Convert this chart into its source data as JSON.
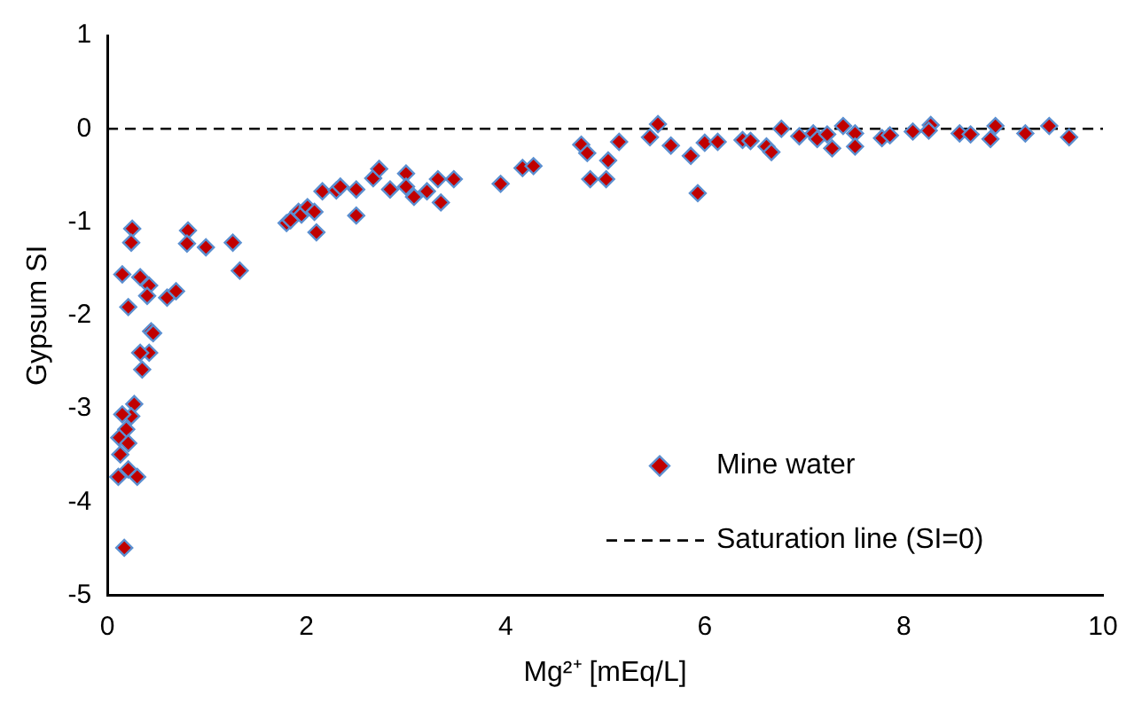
{
  "chart_data": {
    "type": "scatter",
    "xlabel": "Mg²⁺ [mEq/L]",
    "ylabel": "Gypsum SI",
    "xlim": [
      0,
      10
    ],
    "xticks": [
      0,
      2,
      4,
      6,
      8,
      10
    ],
    "ylim": [
      -5,
      1
    ],
    "yticks": [
      -5,
      -4,
      -3,
      -2,
      -1,
      0,
      1
    ],
    "grid": false,
    "legend": "bottom right",
    "marker": "diamond",
    "series": [
      {
        "name": "Mine water",
        "color": "#c00000",
        "x": [
          0.25,
          0.24,
          0.15,
          0.21,
          0.33,
          0.42,
          0.4,
          0.6,
          0.69,
          0.81,
          0.8,
          0.99,
          1.26,
          1.33,
          0.44,
          0.46,
          0.42,
          0.33,
          0.35,
          0.27,
          0.24,
          0.15,
          0.19,
          0.12,
          0.21,
          0.13,
          0.11,
          0.21,
          0.3,
          0.17,
          1.8,
          1.84,
          1.92,
          1.95,
          2.01,
          2.08,
          2.1,
          2.16,
          2.3,
          2.34,
          2.5,
          2.5,
          2.67,
          2.73,
          2.84,
          3.0,
          3.0,
          3.08,
          3.21,
          3.32,
          3.48,
          3.35,
          3.95,
          4.17,
          4.28,
          4.76,
          4.82,
          4.85,
          5.01,
          5.03,
          5.14,
          5.45,
          5.53,
          5.66,
          5.86,
          5.93,
          6.0,
          6.13,
          6.38,
          6.46,
          6.62,
          6.67,
          6.77,
          6.95,
          7.09,
          7.13,
          7.23,
          7.28,
          7.39,
          7.51,
          7.51,
          7.78,
          7.86,
          8.09,
          8.27,
          8.25,
          8.56,
          8.67,
          8.87,
          8.92,
          9.22,
          9.46,
          9.66
        ],
        "values": [
          -1.07,
          -1.22,
          -1.56,
          -1.91,
          -1.59,
          -1.68,
          -1.79,
          -1.81,
          -1.74,
          -1.09,
          -1.23,
          -1.27,
          -1.22,
          -1.52,
          -2.17,
          -2.19,
          -2.4,
          -2.4,
          -2.58,
          -2.95,
          -3.08,
          -3.06,
          -3.22,
          -3.31,
          -3.37,
          -3.49,
          -3.73,
          -3.65,
          -3.73,
          -4.49,
          -1.01,
          -0.98,
          -0.89,
          -0.92,
          -0.84,
          -0.89,
          -1.11,
          -0.67,
          -0.66,
          -0.62,
          -0.65,
          -0.93,
          -0.53,
          -0.43,
          -0.65,
          -0.48,
          -0.62,
          -0.73,
          -0.67,
          -0.54,
          -0.54,
          -0.79,
          -0.59,
          -0.42,
          -0.4,
          -0.17,
          -0.26,
          -0.54,
          -0.54,
          -0.34,
          -0.14,
          -0.09,
          0.05,
          -0.18,
          -0.29,
          -0.69,
          -0.15,
          -0.14,
          -0.12,
          -0.13,
          -0.19,
          -0.25,
          0,
          -0.08,
          -0.05,
          -0.11,
          -0.06,
          -0.21,
          0.03,
          -0.05,
          -0.19,
          -0.1,
          -0.07,
          -0.03,
          0.04,
          -0.02,
          -0.05,
          -0.06,
          -0.11,
          0.03,
          -0.05,
          0.03,
          -0.09
        ]
      }
    ],
    "ref_lines": [
      {
        "axis": "y",
        "value": 0,
        "label": "Saturation line (SI=0)",
        "color": "#000000",
        "line_style": "dashed"
      }
    ]
  }
}
